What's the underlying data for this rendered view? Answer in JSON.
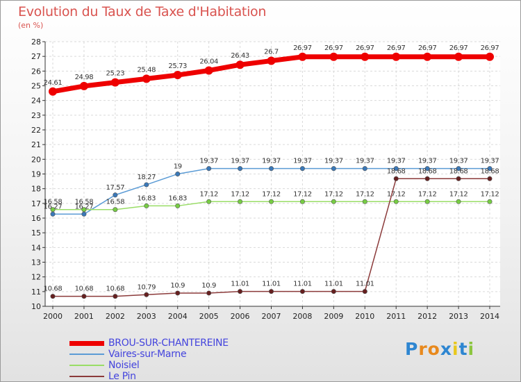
{
  "chart_data": {
    "type": "line",
    "title": "Evolution du Taux de Taxe d'Habitation",
    "ylabel": "(en %)",
    "xlabel": "",
    "ylim": [
      10,
      28
    ],
    "yticks": [
      10,
      11,
      12,
      13,
      14,
      15,
      16,
      17,
      18,
      19,
      20,
      21,
      22,
      23,
      24,
      25,
      26,
      27,
      28
    ],
    "categories": [
      "2000",
      "2001",
      "2002",
      "2003",
      "2004",
      "2005",
      "2006",
      "2007",
      "2008",
      "2009",
      "2010",
      "2011",
      "2012",
      "2013",
      "2014"
    ],
    "series": [
      {
        "name": "BROU-SUR-CHANTEREINE",
        "color": "#ee0000",
        "style": "thick",
        "values": [
          24.61,
          24.98,
          25.23,
          25.48,
          25.73,
          26.04,
          26.43,
          26.7,
          26.97,
          26.97,
          26.97,
          26.97,
          26.97,
          26.97,
          26.97
        ],
        "labels": [
          "24.61",
          "24.98",
          "25.23",
          "25.48",
          "25.73",
          "26.04",
          "26.43",
          "26.7",
          "26.97",
          "26.97",
          "26.97",
          "26.97",
          "26.97",
          "26.97",
          "26.97"
        ]
      },
      {
        "name": "Vaires-sur-Marne",
        "color": "#5b9bd5",
        "style": "thin",
        "marker": "#3a78b8",
        "values": [
          16.27,
          16.27,
          17.57,
          18.27,
          19,
          19.37,
          19.37,
          19.37,
          19.37,
          19.37,
          19.37,
          19.37,
          19.37,
          19.37,
          19.37
        ],
        "labels": [
          "16.27",
          "16.27",
          "17.57",
          "18.27",
          "19",
          "19.37",
          "19.37",
          "19.37",
          "19.37",
          "19.37",
          "19.37",
          "19.37",
          "19.37",
          "19.37",
          "19.37"
        ]
      },
      {
        "name": "Noisiel",
        "color": "#99dd66",
        "style": "thin",
        "marker": "#77cc44",
        "values": [
          16.58,
          16.58,
          16.58,
          16.83,
          16.83,
          17.12,
          17.12,
          17.12,
          17.12,
          17.12,
          17.12,
          17.12,
          17.12,
          17.12,
          17.12
        ],
        "labels": [
          "16.58",
          "16.58",
          "16.58",
          "16.83",
          "16.83",
          "17.12",
          "17.12",
          "17.12",
          "17.12",
          "17.12",
          "17.12",
          "17.12",
          "17.12",
          "17.12",
          "17.12"
        ]
      },
      {
        "name": "Le Pin",
        "color": "#8b3a3a",
        "style": "thin",
        "marker": "#661f1f",
        "values": [
          10.68,
          10.68,
          10.68,
          10.79,
          10.9,
          10.9,
          11.01,
          11.01,
          11.01,
          11.01,
          11.01,
          18.68,
          18.68,
          18.68,
          18.68
        ],
        "labels": [
          "10.68",
          "10.68",
          "10.68",
          "10.79",
          "10.9",
          "10.9",
          "11.01",
          "11.01",
          "11.01",
          "11.01",
          "11.01",
          "18.68",
          "18.68",
          "18.68",
          "18.68"
        ]
      }
    ],
    "grid": true,
    "legend_position": "bottom-left"
  },
  "brand": {
    "name": "Proxiti",
    "letters": [
      "P",
      "r",
      "o",
      "x",
      "i",
      "t",
      "i"
    ],
    "colors": [
      "#2e86d1",
      "#e8891d",
      "#e8891d",
      "#2e86d1",
      "#e8c81d",
      "#2e86d1",
      "#8cc63f"
    ]
  }
}
